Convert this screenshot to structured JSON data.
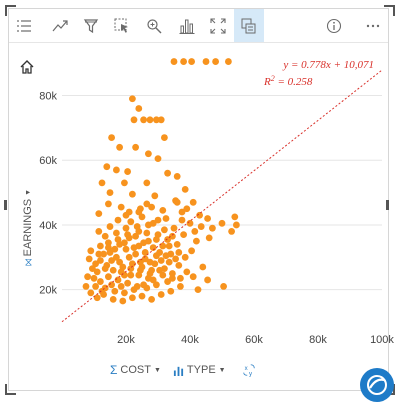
{
  "toolbar": {
    "items": [
      {
        "icon": "legend-list-icon"
      },
      {
        "icon": "trend-line-icon"
      },
      {
        "icon": "filter-icon"
      },
      {
        "icon": "select-cursor-icon"
      },
      {
        "icon": "zoom-icon"
      },
      {
        "icon": "chart-type-icon"
      },
      {
        "icon": "maximize-icon"
      },
      {
        "icon": "flip-card-icon",
        "active": true
      },
      {
        "icon": "info-icon"
      },
      {
        "icon": "more-icon"
      }
    ]
  },
  "y_axis": {
    "title": "EARNINGS"
  },
  "x_axis": {
    "title": "COST",
    "color_by": "TYPE"
  },
  "regression": {
    "equation": "y = 0.778x + 10,071",
    "r2_label": "R",
    "r2_sup": "2",
    "r2_value": " = 0.258",
    "slope": 0.778,
    "intercept": 10071
  },
  "colors": {
    "points": "#f7931e",
    "trendline": "#d9312b",
    "grid": "#e6e6e6",
    "accent": "#2a7ec3"
  },
  "chart_data": {
    "type": "scatter",
    "xlabel": "COST",
    "ylabel": "EARNINGS",
    "xlim": [
      0,
      100000
    ],
    "ylim": [
      10000,
      95000
    ],
    "x_ticks": [
      "20k",
      "40k",
      "60k",
      "80k",
      "100k"
    ],
    "y_ticks": [
      "20k",
      "40k",
      "60k",
      "80k"
    ],
    "x_tick_values": [
      20000,
      40000,
      60000,
      80000,
      100000
    ],
    "y_tick_values": [
      20000,
      40000,
      60000,
      80000
    ],
    "grid": true,
    "series": [
      {
        "points": [
          [
            35000,
            90500
          ],
          [
            38000,
            90500
          ],
          [
            40500,
            90500
          ],
          [
            45000,
            90500
          ],
          [
            48000,
            90500
          ],
          [
            52000,
            90500
          ],
          [
            22000,
            79000
          ],
          [
            24000,
            76000
          ],
          [
            22500,
            72500
          ],
          [
            25500,
            72500
          ],
          [
            27500,
            72500
          ],
          [
            29500,
            72500
          ],
          [
            31000,
            72500
          ],
          [
            15500,
            67000
          ],
          [
            32000,
            67000
          ],
          [
            18000,
            64000
          ],
          [
            23000,
            64000
          ],
          [
            27000,
            62000
          ],
          [
            30000,
            60500
          ],
          [
            14000,
            58000
          ],
          [
            17000,
            57000
          ],
          [
            20500,
            56500
          ],
          [
            33000,
            56000
          ],
          [
            36000,
            55000
          ],
          [
            12500,
            53000
          ],
          [
            19500,
            53000
          ],
          [
            26500,
            53000
          ],
          [
            38500,
            51000
          ],
          [
            15000,
            50000
          ],
          [
            22000,
            49500
          ],
          [
            29000,
            49000
          ],
          [
            35500,
            47500
          ],
          [
            41000,
            47000
          ],
          [
            14500,
            46500
          ],
          [
            18500,
            45500
          ],
          [
            24500,
            45000
          ],
          [
            31500,
            44500
          ],
          [
            37500,
            44000
          ],
          [
            11500,
            43500
          ],
          [
            43000,
            43000
          ],
          [
            45500,
            42000
          ],
          [
            50000,
            40500
          ],
          [
            54000,
            42500
          ],
          [
            54500,
            40000
          ],
          [
            53000,
            38000
          ],
          [
            47000,
            39000
          ],
          [
            46000,
            36000
          ],
          [
            42000,
            35000
          ],
          [
            40500,
            32000
          ],
          [
            38500,
            30000
          ],
          [
            36500,
            27500
          ],
          [
            34500,
            25000
          ],
          [
            41000,
            24000
          ],
          [
            45500,
            23000
          ],
          [
            50500,
            21000
          ],
          [
            30000,
            41500
          ],
          [
            27000,
            40000
          ],
          [
            24000,
            38000
          ],
          [
            21000,
            36000
          ],
          [
            18000,
            34000
          ],
          [
            15000,
            31500
          ],
          [
            12000,
            29000
          ],
          [
            9500,
            26500
          ],
          [
            8000,
            24000
          ],
          [
            7500,
            21000
          ],
          [
            9000,
            19000
          ],
          [
            11000,
            17500
          ],
          [
            13000,
            18500
          ],
          [
            16000,
            17000
          ],
          [
            19000,
            16500
          ],
          [
            22000,
            17500
          ],
          [
            25000,
            18000
          ],
          [
            28000,
            17000
          ],
          [
            31000,
            18500
          ],
          [
            34000,
            19500
          ],
          [
            37000,
            21000
          ],
          [
            33000,
            22500
          ],
          [
            29500,
            21500
          ],
          [
            26500,
            20500
          ],
          [
            23500,
            21000
          ],
          [
            20500,
            22000
          ],
          [
            17500,
            23000
          ],
          [
            14500,
            24000
          ],
          [
            12000,
            22500
          ],
          [
            10500,
            21000
          ],
          [
            13500,
            20500
          ],
          [
            16500,
            19500
          ],
          [
            19500,
            19000
          ],
          [
            22500,
            20000
          ],
          [
            25500,
            21500
          ],
          [
            28500,
            23000
          ],
          [
            31500,
            24500
          ],
          [
            34500,
            23500
          ],
          [
            32000,
            26500
          ],
          [
            29000,
            28000
          ],
          [
            26000,
            29500
          ],
          [
            23000,
            31000
          ],
          [
            20000,
            32500
          ],
          [
            17000,
            30000
          ],
          [
            14000,
            27500
          ],
          [
            11000,
            25500
          ],
          [
            16000,
            26000
          ],
          [
            19000,
            27000
          ],
          [
            22000,
            28000
          ],
          [
            25000,
            27000
          ],
          [
            28000,
            26000
          ],
          [
            31000,
            29000
          ],
          [
            34000,
            31000
          ],
          [
            36000,
            34000
          ],
          [
            33000,
            35500
          ],
          [
            30000,
            37000
          ],
          [
            27000,
            35000
          ],
          [
            24000,
            33500
          ],
          [
            21000,
            30000
          ],
          [
            18000,
            28500
          ],
          [
            15500,
            29000
          ],
          [
            13000,
            31000
          ],
          [
            10500,
            28000
          ],
          [
            19500,
            24500
          ],
          [
            24000,
            24500
          ],
          [
            27000,
            23500
          ],
          [
            30500,
            26000
          ],
          [
            33500,
            28500
          ],
          [
            26000,
            31500
          ],
          [
            23000,
            36500
          ],
          [
            20000,
            39000
          ],
          [
            17000,
            37500
          ],
          [
            14500,
            34500
          ],
          [
            12000,
            33500
          ],
          [
            21500,
            41000
          ],
          [
            25000,
            42500
          ],
          [
            28500,
            40500
          ],
          [
            32000,
            38500
          ],
          [
            35000,
            39000
          ],
          [
            38000,
            37000
          ],
          [
            40000,
            40500
          ],
          [
            39000,
            45000
          ],
          [
            36000,
            47000
          ],
          [
            26500,
            46500
          ],
          [
            21000,
            44000
          ],
          [
            17500,
            41500
          ],
          [
            15000,
            39500
          ],
          [
            11500,
            38000
          ],
          [
            13500,
            36500
          ],
          [
            9000,
            32000
          ],
          [
            8500,
            29500
          ],
          [
            10000,
            23500
          ],
          [
            18500,
            21000
          ],
          [
            21500,
            24500
          ],
          [
            24500,
            26000
          ],
          [
            27500,
            25000
          ],
          [
            29500,
            30500
          ],
          [
            31500,
            33500
          ],
          [
            28500,
            33000
          ],
          [
            25500,
            34500
          ],
          [
            22500,
            33000
          ],
          [
            19500,
            34500
          ],
          [
            16500,
            32500
          ],
          [
            13500,
            26500
          ],
          [
            12500,
            19500
          ],
          [
            15500,
            21500
          ],
          [
            18500,
            25500
          ],
          [
            21500,
            26500
          ],
          [
            24500,
            28500
          ],
          [
            27500,
            28500
          ],
          [
            30500,
            31500
          ],
          [
            33500,
            33500
          ],
          [
            36500,
            31500
          ],
          [
            35500,
            29500
          ],
          [
            32500,
            30500
          ],
          [
            29500,
            35500
          ],
          [
            26500,
            37500
          ],
          [
            23500,
            39500
          ],
          [
            20500,
            37000
          ],
          [
            17500,
            35500
          ],
          [
            14500,
            33000
          ],
          [
            11500,
            31000
          ],
          [
            20000,
            43000
          ],
          [
            24000,
            44000
          ],
          [
            28000,
            45500
          ],
          [
            32500,
            42000
          ],
          [
            34500,
            36500
          ],
          [
            37500,
            41500
          ],
          [
            41500,
            38000
          ],
          [
            43500,
            39500
          ],
          [
            44000,
            27000
          ],
          [
            39000,
            25500
          ],
          [
            37000,
            23500
          ],
          [
            42500,
            20000
          ]
        ]
      }
    ]
  }
}
